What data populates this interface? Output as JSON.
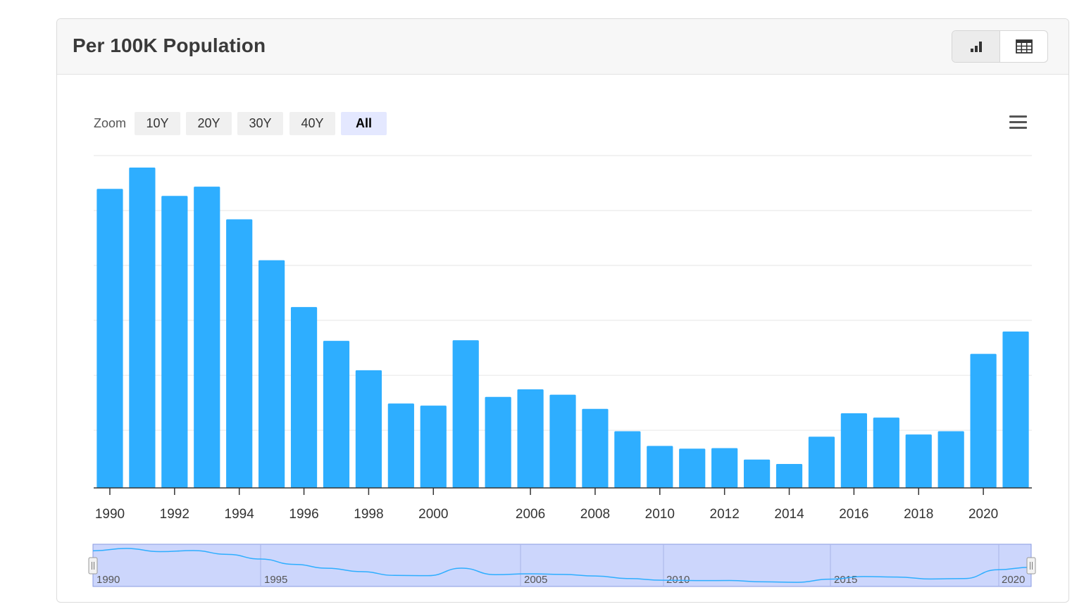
{
  "header": {
    "title": "Per 100K Population"
  },
  "view_toggle": {
    "chart_icon": "bar-chart-icon",
    "table_icon": "table-icon",
    "active": "chart"
  },
  "zoom": {
    "label": "Zoom",
    "buttons": [
      "10Y",
      "20Y",
      "30Y",
      "40Y",
      "All"
    ],
    "active": "All"
  },
  "menu": {
    "icon": "hamburger-menu-icon"
  },
  "colors": {
    "bar": "#2eaeff",
    "navigator_fill": "#ccd6fc",
    "navigator_line": "#2eaeff"
  },
  "chart_data": {
    "type": "bar",
    "title": "",
    "xlabel": "",
    "ylabel": "",
    "categories": [
      "1990",
      "1991",
      "1992",
      "1993",
      "1994",
      "1995",
      "1996",
      "1997",
      "1998",
      "1999",
      "2000",
      "2001",
      "2005",
      "2006",
      "2007",
      "2008",
      "2009",
      "2010",
      "2011",
      "2012",
      "2013",
      "2014",
      "2015",
      "2016",
      "2017",
      "2018",
      "2019",
      "2020",
      "2021"
    ],
    "values": [
      549,
      588,
      536,
      553,
      493,
      418,
      332,
      270,
      216,
      155,
      151,
      271,
      167,
      181,
      171,
      145,
      104,
      77,
      72,
      73,
      52,
      44,
      94,
      137,
      129,
      98,
      104,
      246,
      287
    ],
    "ylim": [
      0,
      610
    ],
    "grid": true,
    "x_tick_labels": [
      "1990",
      "1992",
      "1994",
      "1996",
      "1998",
      "2000",
      "2006",
      "2008",
      "2010",
      "2012",
      "2014",
      "2016",
      "2018",
      "2020"
    ],
    "navigator": {
      "labels": [
        "1990",
        "1995",
        "2005",
        "2010",
        "2015",
        "2020"
      ],
      "range": [
        "1990",
        "2021"
      ]
    }
  }
}
